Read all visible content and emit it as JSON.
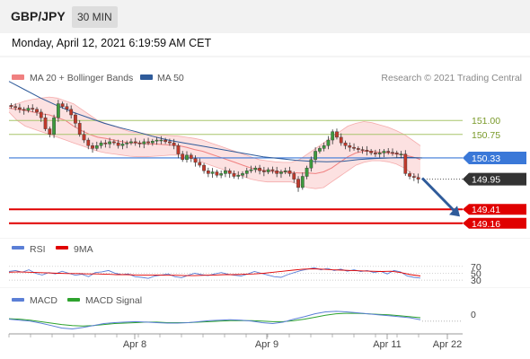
{
  "header": {
    "symbol": "GBP/JPY",
    "timeframe": "30 MIN"
  },
  "datetime": "Monday, April 12, 2021 6:19:59 AM CET",
  "legend": {
    "bollinger": "MA 20 + Bollinger Bands",
    "ma50": "MA 50",
    "credit": "Research © 2021 Trading Central",
    "rsi": "RSI",
    "rsi_ma": "9MA",
    "macd": "MACD",
    "macd_signal": "MACD Signal"
  },
  "colors": {
    "bollinger": "#f08080",
    "band_fill": "#fbdcdc",
    "ma50": "#2f5b9a",
    "resistance": "#a8c66c",
    "support": "#e00000",
    "pivot": "#3a78d8",
    "price_label": "#333333",
    "arrow": "#2f5b9a",
    "rsi": "#5b7fd6",
    "rsi_ma": "#e00000",
    "macd": "#5b7fd6",
    "macd_signal": "#2ea32e",
    "candle_up": "#3d9a3d",
    "candle_down": "#c0392b"
  },
  "chart_data": {
    "type": "candlestick",
    "symbol": "GBP/JPY",
    "timeframe": "30 MIN",
    "ylim": [
      148.9,
      151.55
    ],
    "x_tick_labels": [
      "Apr 8",
      "Apr 9",
      "Apr 11",
      "Apr 22"
    ],
    "levels": [
      {
        "value": 151.0,
        "label": "151.00",
        "kind": "resistance"
      },
      {
        "value": 150.75,
        "label": "150.75",
        "kind": "resistance"
      },
      {
        "value": 150.33,
        "label": "150.33",
        "kind": "pivot"
      },
      {
        "value": 149.95,
        "label": "149.95",
        "kind": "last-price"
      },
      {
        "value": 149.41,
        "label": "149.41",
        "kind": "support"
      },
      {
        "value": 149.16,
        "label": "149.16",
        "kind": "support"
      }
    ],
    "close_series": [
      151.25,
      151.23,
      151.2,
      151.18,
      151.22,
      151.2,
      151.15,
      151.05,
      150.85,
      150.75,
      151.05,
      151.3,
      151.25,
      151.2,
      151.1,
      150.95,
      150.75,
      150.65,
      150.55,
      150.5,
      150.55,
      150.6,
      150.58,
      150.62,
      150.6,
      150.55,
      150.58,
      150.6,
      150.62,
      150.6,
      150.58,
      150.62,
      150.6,
      150.63,
      150.65,
      150.65,
      150.62,
      150.6,
      150.55,
      150.4,
      150.3,
      150.38,
      150.32,
      150.25,
      150.2,
      150.1,
      150.05,
      150.08,
      150.02,
      150.05,
      150.1,
      150.05,
      150.0,
      150.02,
      150.05,
      150.1,
      150.12,
      150.15,
      150.1,
      150.08,
      150.12,
      150.1,
      150.05,
      150.08,
      150.1,
      150.05,
      149.95,
      149.8,
      150.0,
      150.15,
      150.3,
      150.45,
      150.5,
      150.55,
      150.65,
      150.8,
      150.7,
      150.6,
      150.55,
      150.52,
      150.5,
      150.48,
      150.47,
      150.45,
      150.42,
      150.4,
      150.42,
      150.45,
      150.43,
      150.42,
      150.4,
      150.4,
      150.05,
      150.0,
      149.98,
      149.95
    ],
    "ma20_series": [
      151.22,
      151.2,
      151.18,
      151.15,
      151.12,
      151.1,
      151.05,
      151.0,
      150.9,
      150.82,
      150.75,
      150.7,
      150.68,
      150.65,
      150.62,
      150.6,
      150.6,
      150.58,
      150.58,
      150.57,
      150.56,
      150.55,
      150.52,
      150.48,
      150.45,
      150.4,
      150.35,
      150.3,
      150.25,
      150.2,
      150.15,
      150.12,
      150.1,
      150.08,
      150.08,
      150.07,
      150.06,
      150.06,
      150.05,
      150.08,
      150.15,
      150.25,
      150.35,
      150.42,
      150.45,
      150.45,
      150.43,
      150.42,
      150.4,
      150.38,
      150.35,
      150.3
    ],
    "bb_upper_series": [
      151.25,
      151.3,
      151.35,
      151.38,
      151.4,
      151.42,
      151.4,
      151.35,
      151.3,
      151.2,
      151.1,
      151.0,
      150.95,
      150.9,
      150.85,
      150.8,
      150.78,
      150.76,
      150.75,
      150.74,
      150.73,
      150.72,
      150.7,
      150.68,
      150.65,
      150.6,
      150.55,
      150.5,
      150.45,
      150.4,
      150.35,
      150.3,
      150.28,
      150.26,
      150.25,
      150.25,
      150.3,
      150.4,
      150.5,
      150.6,
      150.7,
      150.8,
      150.9,
      150.95,
      150.98,
      150.96,
      150.92,
      150.88,
      150.82,
      150.75,
      150.65,
      150.55
    ],
    "bb_lower_series": [
      151.15,
      151.0,
      150.9,
      150.85,
      150.8,
      150.75,
      150.7,
      150.65,
      150.6,
      150.55,
      150.5,
      150.45,
      150.42,
      150.4,
      150.38,
      150.36,
      150.35,
      150.35,
      150.36,
      150.37,
      150.38,
      150.38,
      150.35,
      150.3,
      150.25,
      150.2,
      150.15,
      150.1,
      150.05,
      150.0,
      149.95,
      149.92,
      149.9,
      149.9,
      149.9,
      149.9,
      149.85,
      149.8,
      149.78,
      149.8,
      149.9,
      150.0,
      150.1,
      150.2,
      150.25,
      150.28,
      150.28,
      150.26,
      150.22,
      150.15,
      150.05,
      149.95
    ],
    "ma50_series": [
      151.7,
      151.55,
      151.4,
      151.27,
      151.15,
      151.05,
      150.95,
      150.87,
      150.8,
      150.72,
      150.65,
      150.6,
      150.55,
      150.5,
      150.45,
      150.4,
      150.35,
      150.32,
      150.29,
      150.27,
      150.26,
      150.27,
      150.3,
      150.32,
      150.33,
      150.34,
      150.33
    ],
    "projection": {
      "from": 150.0,
      "to": 149.41
    },
    "rsi": {
      "ylim": [
        25,
        80
      ],
      "levels": [
        70,
        50,
        30
      ],
      "level_labels": [
        "70",
        "50",
        "30"
      ],
      "rsi_series": [
        55,
        58,
        53,
        60,
        50,
        45,
        52,
        48,
        56,
        50,
        44,
        47,
        40,
        52,
        54,
        58,
        50,
        46,
        48,
        40,
        38,
        35,
        42,
        45,
        48,
        40,
        37,
        44,
        50,
        46,
        43,
        48,
        52,
        47,
        44,
        42,
        48,
        55,
        50,
        45,
        40,
        38,
        46,
        52,
        58,
        62,
        66,
        60,
        64,
        58,
        62,
        56,
        60,
        55,
        58,
        52,
        56,
        48,
        58,
        54,
        42,
        38,
        36
      ],
      "ma_series": [
        53,
        54,
        53,
        52,
        51,
        50,
        49,
        49,
        48,
        48,
        47,
        46,
        46,
        45,
        45,
        45,
        44,
        44,
        43,
        43,
        44,
        45,
        46,
        46,
        47,
        48,
        50,
        53,
        56,
        59,
        62,
        63,
        62,
        60,
        59,
        58,
        57,
        56,
        55,
        56,
        52,
        46,
        42
      ]
    },
    "macd": {
      "ylim": [
        -0.35,
        0.2
      ],
      "zero_label": "0",
      "macd_series": [
        -0.05,
        -0.07,
        -0.09,
        -0.13,
        -0.18,
        -0.23,
        -0.25,
        -0.22,
        -0.18,
        -0.14,
        -0.12,
        -0.11,
        -0.1,
        -0.11,
        -0.12,
        -0.13,
        -0.13,
        -0.12,
        -0.1,
        -0.08,
        -0.07,
        -0.06,
        -0.07,
        -0.09,
        -0.12,
        -0.14,
        -0.11,
        -0.05,
        0.0,
        0.06,
        0.1,
        0.11,
        0.1,
        0.08,
        0.06,
        0.04,
        0.02,
        0.0,
        -0.02,
        -0.06
      ],
      "signal_series": [
        -0.04,
        -0.05,
        -0.07,
        -0.1,
        -0.13,
        -0.16,
        -0.18,
        -0.19,
        -0.18,
        -0.16,
        -0.14,
        -0.13,
        -0.12,
        -0.11,
        -0.11,
        -0.12,
        -0.12,
        -0.12,
        -0.11,
        -0.1,
        -0.09,
        -0.08,
        -0.08,
        -0.08,
        -0.09,
        -0.1,
        -0.1,
        -0.08,
        -0.05,
        -0.01,
        0.03,
        0.06,
        0.07,
        0.07,
        0.06,
        0.05,
        0.04,
        0.02,
        0.0,
        -0.02
      ]
    }
  }
}
